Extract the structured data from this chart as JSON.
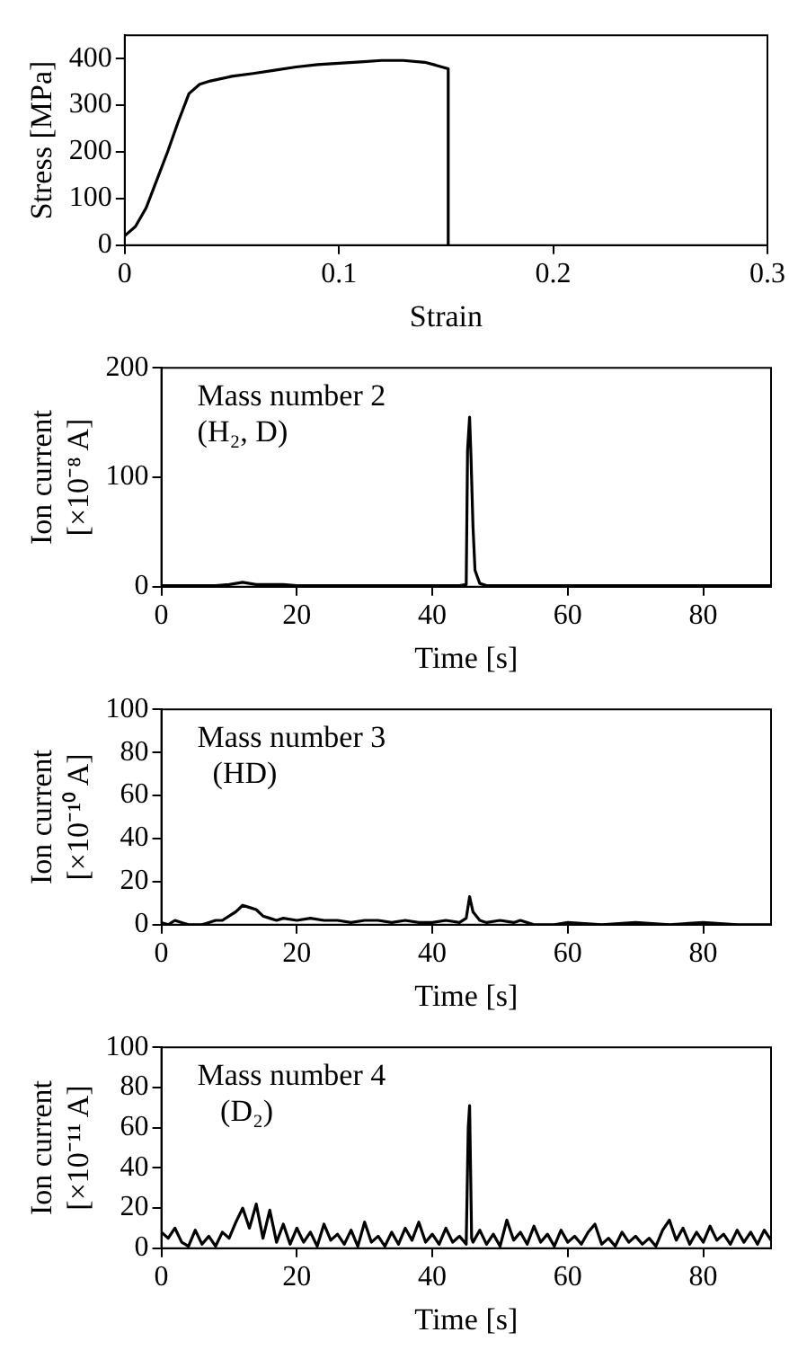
{
  "chart_data": [
    {
      "type": "line",
      "xlabel": "Strain",
      "ylabel": "Stress [MPa]",
      "xlim": [
        0,
        0.3
      ],
      "xticks": [
        0,
        0.1,
        0.2,
        0.3
      ],
      "ylim": [
        0,
        450
      ],
      "yticks": [
        0,
        100,
        200,
        300,
        400
      ],
      "grid": false,
      "legend": false,
      "series": [
        {
          "color": "#000000",
          "x": [
            0,
            0.005,
            0.01,
            0.015,
            0.02,
            0.025,
            0.03,
            0.035,
            0.04,
            0.05,
            0.06,
            0.07,
            0.08,
            0.09,
            0.1,
            0.11,
            0.12,
            0.13,
            0.14,
            0.145,
            0.151,
            0.151
          ],
          "values": [
            20,
            40,
            80,
            140,
            200,
            265,
            325,
            345,
            352,
            362,
            368,
            375,
            382,
            387,
            390,
            393,
            396,
            396,
            392,
            386,
            378,
            0
          ]
        }
      ]
    },
    {
      "type": "line",
      "xlabel": "Time [s]",
      "ylabel": "Ion current\n[×10⁻⁸ A]",
      "xlim": [
        0,
        90
      ],
      "xticks": [
        0,
        20,
        40,
        60,
        80
      ],
      "ylim": [
        0,
        200
      ],
      "yticks": [
        0,
        100,
        200
      ],
      "grid": false,
      "legend": false,
      "annotations": [
        "Mass number 2",
        "(H₂, D)"
      ],
      "series": [
        {
          "color": "#000000",
          "x": [
            0,
            2,
            4,
            6,
            8,
            10,
            11,
            12,
            13,
            14,
            16,
            18,
            20,
            25,
            30,
            35,
            40,
            44,
            45,
            45.2,
            45.5,
            45.7,
            46,
            46.3,
            47,
            48,
            50,
            55,
            60,
            70,
            80,
            90
          ],
          "values": [
            1,
            1,
            1,
            1,
            1,
            2,
            3,
            4,
            3,
            2,
            2,
            2,
            1,
            1,
            1,
            1,
            1,
            1,
            2,
            125,
            155,
            120,
            55,
            15,
            3,
            1,
            1,
            1,
            1,
            1,
            1,
            1
          ]
        }
      ]
    },
    {
      "type": "line",
      "xlabel": "Time [s]",
      "ylabel": "Ion current\n[×10⁻¹⁰ A]",
      "xlim": [
        0,
        90
      ],
      "xticks": [
        0,
        20,
        40,
        60,
        80
      ],
      "ylim": [
        0,
        100
      ],
      "yticks": [
        0,
        20,
        40,
        60,
        80,
        100
      ],
      "grid": false,
      "legend": false,
      "annotations": [
        "Mass number 3",
        "  (HD)"
      ],
      "series": [
        {
          "color": "#000000",
          "x": [
            0,
            1,
            2,
            3,
            4,
            5,
            6,
            7,
            8,
            9,
            10,
            11,
            12,
            13,
            14,
            15,
            16,
            17,
            18,
            20,
            22,
            24,
            26,
            28,
            30,
            32,
            34,
            36,
            38,
            40,
            42,
            44,
            45,
            45.5,
            46,
            47,
            48,
            50,
            52,
            53,
            55,
            58,
            60,
            65,
            70,
            75,
            80,
            85,
            90
          ],
          "values": [
            1,
            0,
            2,
            1,
            0,
            0,
            0,
            1,
            2,
            2,
            4,
            6,
            9,
            8,
            7,
            4,
            3,
            2,
            3,
            2,
            3,
            2,
            2,
            1,
            2,
            2,
            1,
            2,
            1,
            1,
            2,
            1,
            3,
            13,
            6,
            2,
            1,
            2,
            1,
            2,
            0,
            0,
            1,
            0,
            1,
            0,
            1,
            0,
            0
          ]
        }
      ]
    },
    {
      "type": "line",
      "xlabel": "Time [s]",
      "ylabel": "Ion current\n[×10⁻¹¹ A]",
      "xlim": [
        0,
        90
      ],
      "xticks": [
        0,
        20,
        40,
        60,
        80
      ],
      "ylim": [
        0,
        100
      ],
      "yticks": [
        0,
        20,
        40,
        60,
        80,
        100
      ],
      "grid": false,
      "legend": false,
      "annotations": [
        "Mass number 4",
        "   (D₂)"
      ],
      "series": [
        {
          "color": "#000000",
          "x": [
            0,
            1,
            2,
            3,
            4,
            5,
            6,
            7,
            8,
            9,
            10,
            11,
            12,
            13,
            14,
            15,
            16,
            17,
            18,
            19,
            20,
            21,
            22,
            23,
            24,
            25,
            26,
            27,
            28,
            29,
            30,
            31,
            32,
            33,
            34,
            35,
            36,
            37,
            38,
            39,
            40,
            41,
            42,
            43,
            44,
            45,
            45.3,
            45.5,
            45.8,
            46,
            47,
            48,
            49,
            50,
            51,
            52,
            53,
            54,
            55,
            56,
            57,
            58,
            59,
            60,
            61,
            62,
            63,
            64,
            65,
            66,
            67,
            68,
            69,
            70,
            71,
            72,
            73,
            74,
            75,
            76,
            77,
            78,
            79,
            80,
            81,
            82,
            83,
            84,
            85,
            86,
            87,
            88,
            89,
            90
          ],
          "values": [
            8,
            5,
            10,
            3,
            1,
            9,
            2,
            6,
            1,
            8,
            5,
            13,
            20,
            10,
            22,
            5,
            19,
            3,
            12,
            2,
            10,
            3,
            8,
            1,
            12,
            4,
            7,
            2,
            9,
            1,
            13,
            3,
            6,
            1,
            8,
            2,
            10,
            4,
            13,
            3,
            7,
            2,
            10,
            3,
            6,
            2,
            60,
            71,
            5,
            3,
            9,
            2,
            7,
            1,
            14,
            4,
            8,
            2,
            11,
            3,
            7,
            1,
            9,
            3,
            6,
            2,
            8,
            12,
            2,
            5,
            1,
            8,
            3,
            6,
            2,
            5,
            1,
            9,
            14,
            4,
            10,
            2,
            8,
            3,
            11,
            4,
            7,
            2,
            9,
            3,
            8,
            2,
            9,
            4
          ]
        }
      ]
    }
  ]
}
